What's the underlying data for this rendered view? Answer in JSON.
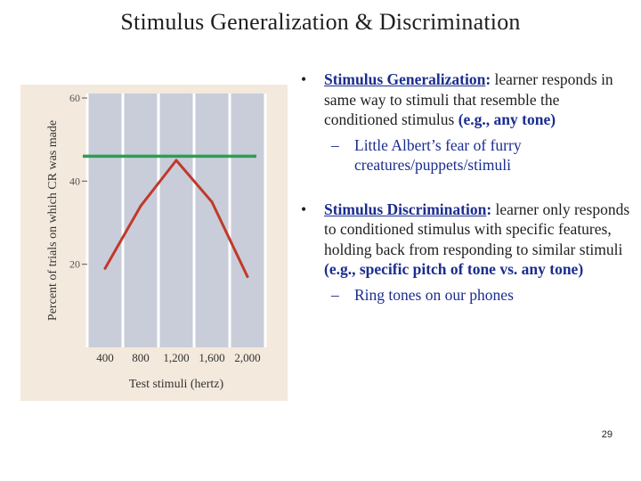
{
  "slide": {
    "title": "Stimulus Generalization & Discrimination",
    "page_number": "29"
  },
  "bullets": [
    {
      "term": "Stimulus Generalization",
      "colon": ":",
      "text": " learner responds in same way to stimuli that resemble the conditioned stimulus ",
      "example": "(e.g., any tone)",
      "sub": "Little Albert’s fear of furry creatures/puppets/stimuli"
    },
    {
      "term": "Stimulus Discrimination",
      "colon": ":",
      "text": " learner only responds to conditioned stimulus with specific features, holding back from responding to similar stimuli ",
      "example": "(e.g., specific pitch of tone vs. any tone)",
      "sub": "Ring tones on our phones"
    }
  ],
  "chart_data": {
    "type": "line",
    "x": [
      400,
      800,
      1200,
      1600,
      2000
    ],
    "series": [
      {
        "values": [
          19,
          34,
          45,
          35,
          17
        ]
      }
    ],
    "reference_line_y": 46,
    "xlabel": "Test stimuli (hertz)",
    "ylabel": "Percent of trials on which CR was made",
    "x_tick_labels": [
      "400",
      "800",
      "1,200",
      "1,600",
      "2,000"
    ],
    "y_tick_labels": [
      "20",
      "40",
      "60"
    ],
    "y_ticks": [
      20,
      40,
      60
    ],
    "ylim": [
      0,
      60
    ],
    "grid": "vertical",
    "colors": {
      "panel_bg": "#f3e9dc",
      "plot_bg": "#c9cdd9",
      "grid": "#ffffff",
      "line": "#c0392b",
      "reference": "#2e9e52"
    }
  }
}
